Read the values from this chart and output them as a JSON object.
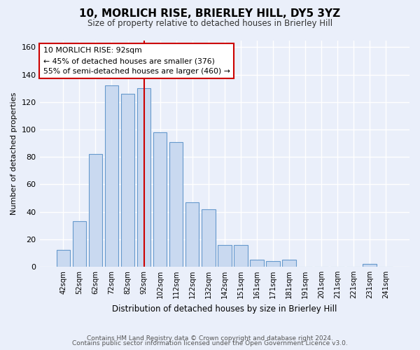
{
  "title": "10, MORLICH RISE, BRIERLEY HILL, DY5 3YZ",
  "subtitle": "Size of property relative to detached houses in Brierley Hill",
  "xlabel": "Distribution of detached houses by size in Brierley Hill",
  "ylabel": "Number of detached properties",
  "categories": [
    "42sqm",
    "52sqm",
    "62sqm",
    "72sqm",
    "82sqm",
    "92sqm",
    "102sqm",
    "112sqm",
    "122sqm",
    "132sqm",
    "142sqm",
    "151sqm",
    "161sqm",
    "171sqm",
    "181sqm",
    "191sqm",
    "201sqm",
    "211sqm",
    "221sqm",
    "231sqm",
    "241sqm"
  ],
  "values": [
    12,
    33,
    82,
    132,
    126,
    130,
    98,
    91,
    47,
    42,
    16,
    16,
    5,
    4,
    5,
    0,
    0,
    0,
    0,
    2,
    0
  ],
  "bar_color": "#c9d9f0",
  "bar_edge_color": "#6699cc",
  "property_label": "10 MORLICH RISE: 92sqm",
  "annotation_line1": "← 45% of detached houses are smaller (376)",
  "annotation_line2": "55% of semi-detached houses are larger (460) →",
  "vline_color": "#cc0000",
  "vline_x_index": 5,
  "annotation_box_color": "#ffffff",
  "annotation_box_edge": "#cc0000",
  "ylim": [
    0,
    165
  ],
  "yticks": [
    0,
    20,
    40,
    60,
    80,
    100,
    120,
    140,
    160
  ],
  "bg_color": "#eaeffa",
  "fig_bg_color": "#eaeffa",
  "grid_color": "#ffffff",
  "footer_line1": "Contains HM Land Registry data © Crown copyright and database right 2024.",
  "footer_line2": "Contains public sector information licensed under the Open Government Licence v3.0."
}
